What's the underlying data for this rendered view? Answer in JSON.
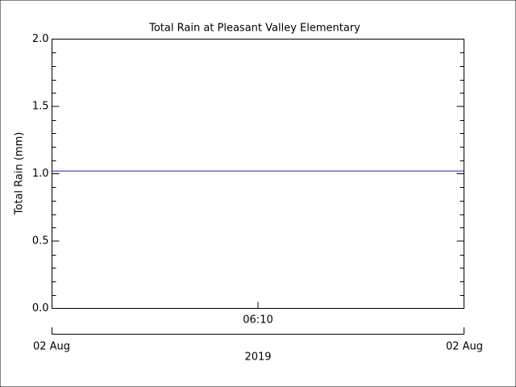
{
  "chart_data": {
    "type": "line",
    "title": "Total Rain at Pleasant Valley Elementary",
    "y_label": "Total Rain (mm)",
    "x_center_label": "06:10",
    "x_date_labels": [
      "02 Aug",
      "02 Aug"
    ],
    "x_year_label": "2019",
    "values": [
      1.02,
      1.02
    ],
    "color": "#1a1acc",
    "ylim": [
      0,
      2
    ],
    "yticks": [
      {
        "value": 0,
        "label": "0.0"
      },
      {
        "value": 0.5,
        "label": "0.5"
      },
      {
        "value": 1,
        "label": "1.0"
      },
      {
        "value": 1.5,
        "label": "1.5"
      },
      {
        "value": 2,
        "label": "2.0"
      }
    ],
    "yminorticks": [
      0.1,
      0.2,
      0.3,
      0.4,
      0.6,
      0.7,
      0.8,
      0.9,
      1.1,
      1.2,
      1.3,
      1.4,
      1.6,
      1.7,
      1.8,
      1.9
    ]
  }
}
